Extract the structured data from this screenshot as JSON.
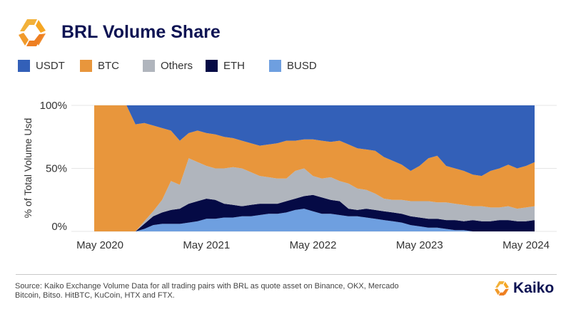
{
  "header": {
    "title": "BRL Volume Share",
    "logo_text": "Kaiko"
  },
  "footer": {
    "source_line1": "Source: Kaiko Exchange Volume Data for all trading pairs with BRL as quote asset on Binance, OKX, Mercado",
    "source_line2": "Bitcoin, Bitso. HitBTC, KuCoin, HTX and FTX.",
    "brand": "Kaiko"
  },
  "chart_data": {
    "type": "area",
    "stacked": true,
    "title": "BRL Volume Share",
    "xlabel": "",
    "ylabel": "% of Total Volume Usd",
    "ylim": [
      0,
      100
    ],
    "y_ticks": [
      "0%",
      "50%",
      "100%"
    ],
    "x_ticks": [
      "May 2020",
      "May 2021",
      "May 2022",
      "May 2023",
      "May 2024"
    ],
    "grid": "horizontal",
    "legend_position": "top-left",
    "x": [
      "2020-04",
      "2020-05",
      "2020-06",
      "2020-07",
      "2020-08",
      "2020-09",
      "2020-10",
      "2020-11",
      "2020-12",
      "2021-01",
      "2021-02",
      "2021-03",
      "2021-04",
      "2021-05",
      "2021-06",
      "2021-07",
      "2021-08",
      "2021-09",
      "2021-10",
      "2021-11",
      "2021-12",
      "2022-01",
      "2022-02",
      "2022-03",
      "2022-04",
      "2022-05",
      "2022-06",
      "2022-07",
      "2022-08",
      "2022-09",
      "2022-10",
      "2022-11",
      "2022-12",
      "2023-01",
      "2023-02",
      "2023-03",
      "2023-04",
      "2023-05",
      "2023-06",
      "2023-07",
      "2023-08",
      "2023-09",
      "2023-10",
      "2023-11",
      "2023-12",
      "2024-01",
      "2024-02",
      "2024-03",
      "2024-04",
      "2024-05",
      "2024-06"
    ],
    "series": [
      {
        "name": "BUSD",
        "color": "#6e9fe0",
        "values": [
          0,
          0,
          0,
          0,
          0,
          0,
          2,
          5,
          6,
          6,
          6,
          7,
          8,
          10,
          10,
          11,
          11,
          12,
          12,
          13,
          14,
          14,
          15,
          17,
          18,
          16,
          14,
          14,
          13,
          12,
          12,
          11,
          10,
          9,
          8,
          7,
          5,
          4,
          3,
          3,
          2,
          1,
          1,
          0,
          0,
          0,
          0,
          0,
          0,
          0,
          0
        ]
      },
      {
        "name": "ETH",
        "color": "#050a45",
        "values": [
          0,
          0,
          0,
          0,
          0,
          0,
          4,
          7,
          9,
          11,
          12,
          15,
          16,
          16,
          15,
          11,
          10,
          8,
          9,
          9,
          8,
          8,
          9,
          9,
          10,
          13,
          13,
          11,
          11,
          6,
          5,
          7,
          7,
          7,
          7,
          7,
          7,
          7,
          7,
          7,
          7,
          8,
          7,
          9,
          8,
          8,
          9,
          9,
          8,
          8,
          9
        ]
      },
      {
        "name": "Others",
        "color": "#b0b5bd",
        "values": [
          0,
          0,
          0,
          0,
          0,
          0,
          2,
          4,
          10,
          23,
          19,
          36,
          31,
          26,
          25,
          28,
          30,
          30,
          26,
          22,
          21,
          20,
          18,
          22,
          22,
          15,
          15,
          18,
          16,
          20,
          17,
          15,
          13,
          10,
          10,
          11,
          12,
          13,
          14,
          13,
          14,
          13,
          13,
          11,
          12,
          11,
          10,
          11,
          10,
          11,
          11
        ]
      },
      {
        "name": "BTC",
        "color": "#e8963c",
        "values": [
          100,
          100,
          100,
          100,
          100,
          85,
          78,
          68,
          57,
          40,
          35,
          20,
          25,
          26,
          27,
          25,
          23,
          22,
          23,
          24,
          26,
          28,
          30,
          24,
          23,
          29,
          30,
          28,
          32,
          31,
          32,
          32,
          34,
          33,
          31,
          28,
          24,
          28,
          34,
          37,
          29,
          28,
          27,
          25,
          24,
          29,
          31,
          33,
          32,
          33,
          35
        ]
      },
      {
        "name": "USDT",
        "color": "#3360b8",
        "values": [
          0,
          0,
          0,
          0,
          0,
          15,
          14,
          16,
          18,
          20,
          28,
          22,
          20,
          22,
          23,
          25,
          26,
          28,
          30,
          32,
          31,
          30,
          28,
          28,
          27,
          27,
          28,
          29,
          28,
          31,
          34,
          35,
          36,
          41,
          44,
          47,
          52,
          48,
          42,
          40,
          48,
          50,
          52,
          55,
          56,
          52,
          50,
          47,
          50,
          48,
          45
        ]
      }
    ],
    "legend_order": [
      "USDT",
      "BTC",
      "Others",
      "ETH",
      "BUSD"
    ]
  }
}
